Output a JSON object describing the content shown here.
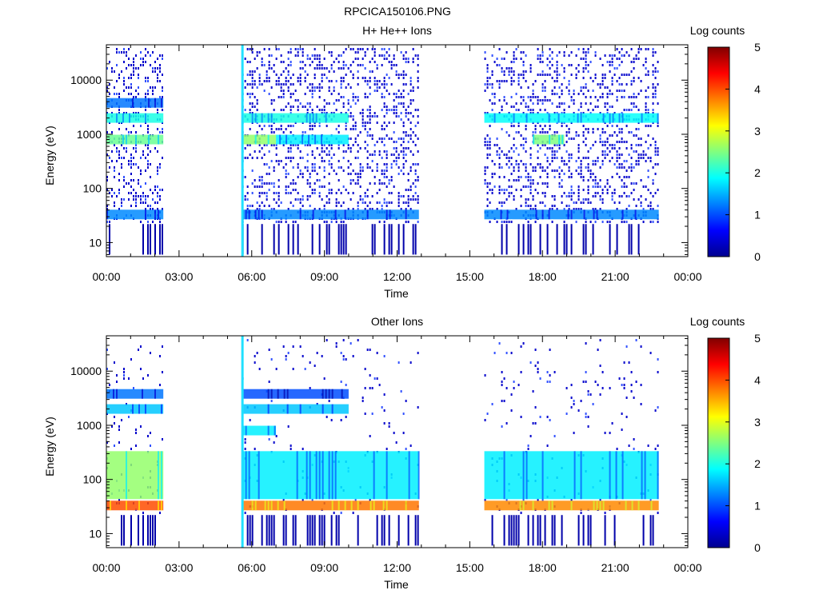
{
  "figure_title": "RPCICA150106.PNG",
  "colorbar_label": "Log counts",
  "colorbar_ticks": [
    "0",
    "1",
    "2",
    "3",
    "4",
    "5"
  ],
  "chart_data": [
    {
      "type": "heatmap",
      "title": "H+ He++ Ions",
      "xlabel": "Time",
      "ylabel": "Energy (eV)",
      "y_scale": "log",
      "xlim_hours": [
        0,
        24
      ],
      "ylim_ev": [
        5.5,
        45000
      ],
      "x_tick_labels": [
        "00:00",
        "03:00",
        "06:00",
        "09:00",
        "12:00",
        "15:00",
        "18:00",
        "21:00",
        "00:00"
      ],
      "y_tick_labels": [
        "10",
        "100",
        "1000",
        "10000"
      ],
      "colorbar_range": [
        0,
        5
      ],
      "data_intervals_hours": [
        [
          0.0,
          2.35
        ],
        [
          5.6,
          12.9
        ],
        [
          15.6,
          22.8
        ]
      ],
      "vertical_spike_hours": 5.6,
      "bands": [
        {
          "energy_ev": 33,
          "log_counts": 1.3,
          "span_hours": [
            0.0,
            2.35
          ]
        },
        {
          "energy_ev": 33,
          "log_counts": 1.3,
          "span_hours": [
            5.6,
            12.9
          ]
        },
        {
          "energy_ev": 33,
          "log_counts": 1.3,
          "span_hours": [
            15.6,
            22.8
          ]
        },
        {
          "energy_ev": 2000,
          "log_counts": 2.0,
          "span_hours": [
            0.0,
            2.35
          ]
        },
        {
          "energy_ev": 2000,
          "log_counts": 2.0,
          "span_hours": [
            5.6,
            10.0
          ]
        },
        {
          "energy_ev": 2000,
          "log_counts": 1.9,
          "span_hours": [
            15.6,
            22.8
          ]
        },
        {
          "energy_ev": 3800,
          "log_counts": 1.2,
          "span_hours": [
            0.0,
            2.35
          ]
        },
        {
          "energy_ev": 800,
          "log_counts": 2.6,
          "span_hours": [
            5.6,
            7.0
          ]
        },
        {
          "energy_ev": 800,
          "log_counts": 1.8,
          "span_hours": [
            7.0,
            10.0
          ]
        },
        {
          "energy_ev": 800,
          "log_counts": 2.4,
          "span_hours": [
            0.0,
            2.35
          ]
        },
        {
          "energy_ev": 800,
          "log_counts": 2.5,
          "span_hours": [
            17.6,
            18.9
          ]
        }
      ]
    },
    {
      "type": "heatmap",
      "title": "Other Ions",
      "xlabel": "Time",
      "ylabel": "Energy (eV)",
      "y_scale": "log",
      "xlim_hours": [
        0,
        24
      ],
      "ylim_ev": [
        5.5,
        45000
      ],
      "x_tick_labels": [
        "00:00",
        "03:00",
        "06:00",
        "09:00",
        "12:00",
        "15:00",
        "18:00",
        "21:00",
        "00:00"
      ],
      "y_tick_labels": [
        "10",
        "100",
        "1000",
        "10000"
      ],
      "colorbar_range": [
        0,
        5
      ],
      "data_intervals_hours": [
        [
          0.0,
          2.35
        ],
        [
          5.6,
          12.9
        ],
        [
          15.6,
          22.8
        ]
      ],
      "vertical_spike_hours": 5.6,
      "bands": [
        {
          "energy_ev": 33,
          "log_counts": 4.0,
          "span_hours": [
            0.0,
            2.35
          ]
        },
        {
          "energy_ev": 33,
          "log_counts": 3.8,
          "span_hours": [
            5.6,
            12.9
          ]
        },
        {
          "energy_ev": 33,
          "log_counts": 3.7,
          "span_hours": [
            15.6,
            22.8
          ]
        },
        {
          "energy_ev": 120,
          "log_counts": 2.6,
          "span_hours": [
            0.0,
            2.35
          ]
        },
        {
          "energy_ev": 120,
          "log_counts": 1.8,
          "span_hours": [
            5.6,
            12.9
          ]
        },
        {
          "energy_ev": 120,
          "log_counts": 1.8,
          "span_hours": [
            15.6,
            22.8
          ]
        },
        {
          "energy_ev": 3800,
          "log_counts": 1.2,
          "span_hours": [
            0.0,
            2.35
          ]
        },
        {
          "energy_ev": 2000,
          "log_counts": 1.6,
          "span_hours": [
            0.0,
            2.35
          ]
        },
        {
          "energy_ev": 3800,
          "log_counts": 1.0,
          "span_hours": [
            5.6,
            10.0
          ]
        },
        {
          "energy_ev": 2000,
          "log_counts": 1.6,
          "span_hours": [
            5.6,
            10.0
          ]
        },
        {
          "energy_ev": 800,
          "log_counts": 1.8,
          "span_hours": [
            5.6,
            7.0
          ]
        }
      ]
    }
  ]
}
